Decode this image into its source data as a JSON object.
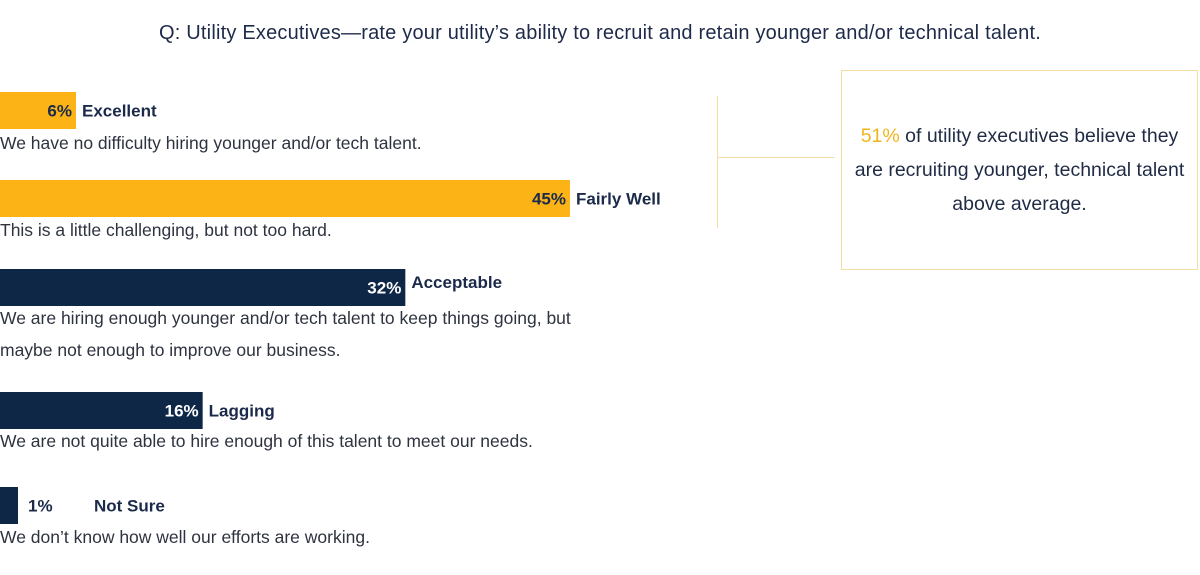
{
  "title": "Q: Utility Executives—rate your utility’s ability to recruit and retain younger and/or technical talent.",
  "colors": {
    "accent": "#fcb316",
    "dark": "#0f2747",
    "text": "#1b2a4a"
  },
  "chart_data": {
    "type": "bar",
    "orientation": "horizontal",
    "categories": [
      "Excellent",
      "Fairly Well",
      "Acceptable",
      "Lagging",
      "Not Sure"
    ],
    "values": [
      6,
      45,
      32,
      16,
      1
    ],
    "value_labels": [
      "6%",
      "45%",
      "32%",
      "16%",
      "1%"
    ],
    "bar_colors": [
      "#fcb316",
      "#fcb316",
      "#0f2747",
      "#0f2747",
      "#0f2747"
    ],
    "descriptions": [
      "We have no difficulty hiring younger and/or tech talent.",
      "This is a little challenging, but not too hard.",
      "We are hiring enough younger and/or tech talent to keep things going, but maybe not enough to improve our business.",
      "We are not quite able to hire enough of this talent to meet our needs.",
      "We don’t know how well our efforts are working."
    ],
    "xlim": [
      0,
      100
    ]
  },
  "callout": {
    "percent": "51%",
    "text": "of utility executives believe they are recruiting younger, technical talent above average."
  }
}
